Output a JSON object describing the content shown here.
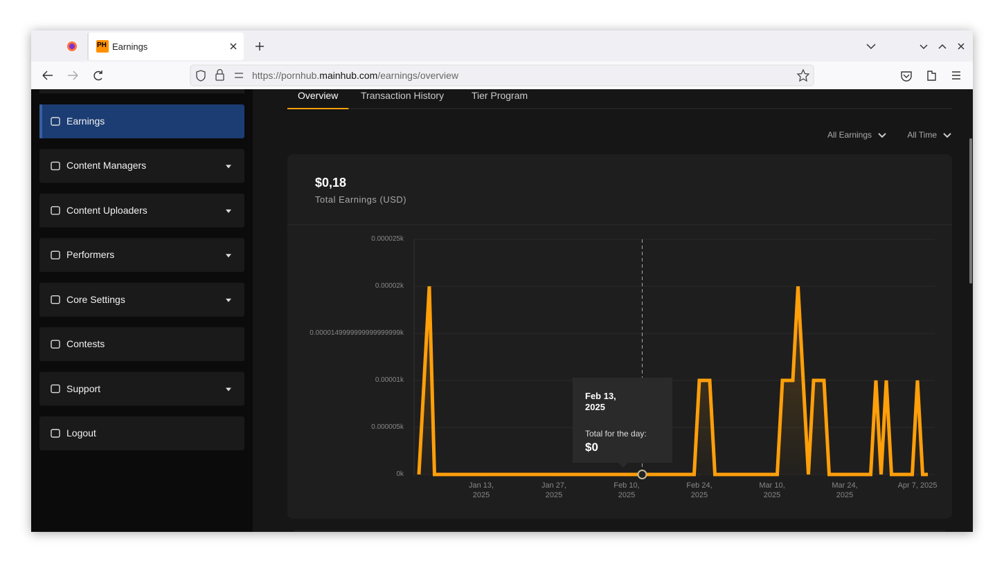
{
  "browser": {
    "tab_title": "Earnings",
    "favicon": "PH",
    "url": {
      "prefix": "https://pornhub.",
      "domain": "mainhub.com",
      "path": "/earnings/overview"
    }
  },
  "sidebar": {
    "items": [
      {
        "label": "Earnings",
        "active": true,
        "dropdown": false
      },
      {
        "label": "Content Managers",
        "active": false,
        "dropdown": true
      },
      {
        "label": "Content Uploaders",
        "active": false,
        "dropdown": true
      },
      {
        "label": "Performers",
        "active": false,
        "dropdown": true
      },
      {
        "label": "Core Settings",
        "active": false,
        "dropdown": true
      },
      {
        "label": "Contests",
        "active": false,
        "dropdown": false
      },
      {
        "label": "Support",
        "active": false,
        "dropdown": true
      },
      {
        "label": "Logout",
        "active": false,
        "dropdown": false
      }
    ]
  },
  "tabs": {
    "items": [
      "Overview",
      "Transaction History",
      "Tier Program"
    ],
    "active": 0
  },
  "filters": [
    "All Earnings",
    "All Time"
  ],
  "summary": {
    "total": "$0,18",
    "label": "Total Earnings (USD)"
  },
  "chart_data": {
    "type": "line",
    "color": "#ff9f0a",
    "x": [
      "2025-01-01",
      "2025-01-03",
      "2025-01-04",
      "2025-02-13",
      "2025-02-23",
      "2025-02-24",
      "2025-02-26",
      "2025-02-27",
      "2025-03-11",
      "2025-03-12",
      "2025-03-14",
      "2025-03-15",
      "2025-03-17",
      "2025-03-18",
      "2025-03-20",
      "2025-03-21",
      "2025-03-29",
      "2025-03-30",
      "2025-03-31",
      "2025-04-01",
      "2025-04-02",
      "2025-04-06",
      "2025-04-07",
      "2025-04-08",
      "2025-04-09"
    ],
    "values": [
      0,
      2e-05,
      0,
      0,
      0,
      1e-05,
      1e-05,
      0,
      0,
      1e-05,
      1e-05,
      2e-05,
      0,
      1e-05,
      1e-05,
      0,
      0,
      1e-05,
      0,
      1e-05,
      0,
      0,
      1e-05,
      0,
      0
    ],
    "xlim": [
      "2025-01-01",
      "2025-04-09"
    ],
    "xticks": [
      {
        "value": "2025-01-13",
        "label": "Jan 13, 2025"
      },
      {
        "value": "2025-01-27",
        "label": "Jan 27, 2025"
      },
      {
        "value": "2025-02-10",
        "label": "Feb 10, 2025"
      },
      {
        "value": "2025-02-24",
        "label": "Feb 24, 2025"
      },
      {
        "value": "2025-03-10",
        "label": "Mar 10, 2025"
      },
      {
        "value": "2025-03-24",
        "label": "Mar 24, 2025"
      },
      {
        "value": "2025-04-07",
        "label": "Apr 7, 2025"
      }
    ],
    "ylim": [
      0,
      2.5e-05
    ],
    "yticks": [
      {
        "value": 0,
        "label": "0k"
      },
      {
        "value": 5e-06,
        "label": "0.000005k"
      },
      {
        "value": 1e-05,
        "label": "0.00001k"
      },
      {
        "value": 1.5e-05,
        "label": "0.0000149999999999999999k"
      },
      {
        "value": 2e-05,
        "label": "0.00002k"
      },
      {
        "value": 2.5e-05,
        "label": "0.000025k"
      }
    ],
    "grid": true,
    "tooltip": {
      "x": "2025-02-13",
      "title": "Feb 13, 2025",
      "label": "Total for the day:",
      "value": "$0"
    }
  }
}
